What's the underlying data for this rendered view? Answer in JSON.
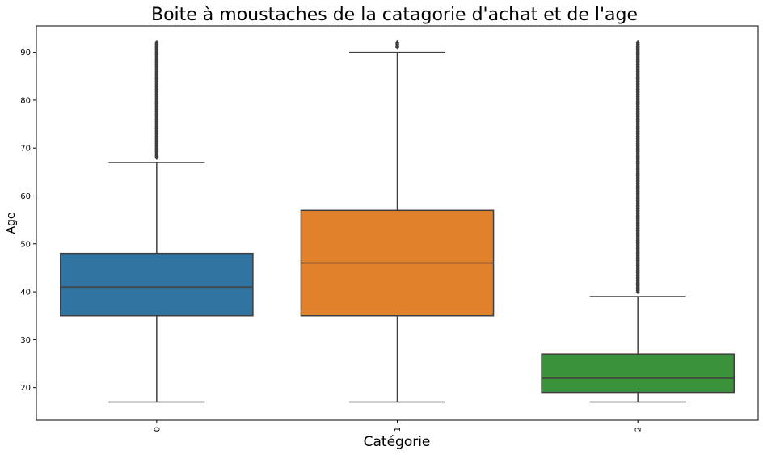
{
  "chart_data": {
    "type": "boxplot",
    "title": "Boite à moustaches de la catagorie d'achat et de l'age",
    "xlabel": "Catégorie",
    "ylabel": "Age",
    "ylim": [
      13.2,
      95.5
    ],
    "yticks": [
      20,
      30,
      40,
      50,
      60,
      70,
      80,
      90
    ],
    "categories": [
      "0",
      "1",
      "2"
    ],
    "boxes": [
      {
        "category": "0",
        "color": "#3274a1",
        "whisker_low": 17,
        "q1": 35,
        "median": 41,
        "q3": 48,
        "whisker_high": 67,
        "outliers_range": [
          68,
          92
        ]
      },
      {
        "category": "1",
        "color": "#e1812c",
        "whisker_low": 17,
        "q1": 35,
        "median": 46,
        "q3": 57,
        "whisker_high": 90,
        "outliers_range": [
          91,
          92
        ]
      },
      {
        "category": "2",
        "color": "#3a923a",
        "whisker_low": 17,
        "q1": 19,
        "median": 22,
        "q3": 27,
        "whisker_high": 39,
        "outliers_range": [
          40,
          92
        ]
      }
    ],
    "grid": false,
    "legend": "none"
  }
}
